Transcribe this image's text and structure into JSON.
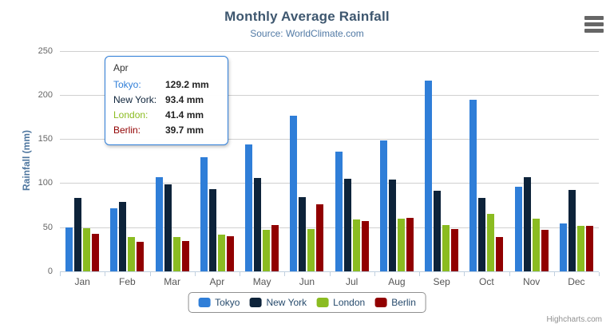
{
  "header": {
    "title": "Monthly Average Rainfall",
    "subtitle": "Source: WorldClimate.com"
  },
  "chart_data": {
    "type": "bar",
    "title": "Monthly Average Rainfall",
    "subtitle": "Source: WorldClimate.com",
    "xlabel": "",
    "ylabel": "Rainfall (mm)",
    "ylim": [
      0,
      250
    ],
    "yticks": [
      0,
      50,
      100,
      150,
      200,
      250
    ],
    "grid": true,
    "legend_position": "bottom",
    "categories": [
      "Jan",
      "Feb",
      "Mar",
      "Apr",
      "May",
      "Jun",
      "Jul",
      "Aug",
      "Sep",
      "Oct",
      "Nov",
      "Dec"
    ],
    "series": [
      {
        "name": "Tokyo",
        "color": "#2F7ED8",
        "values": [
          49.9,
          71.5,
          106.4,
          129.2,
          144.0,
          176.0,
          135.6,
          148.5,
          216.4,
          194.1,
          95.6,
          54.4
        ]
      },
      {
        "name": "New York",
        "color": "#0D233A",
        "values": [
          83.6,
          78.8,
          98.5,
          93.4,
          106.0,
          84.5,
          105.0,
          104.3,
          91.2,
          83.5,
          106.6,
          92.3
        ]
      },
      {
        "name": "London",
        "color": "#8BBC21",
        "values": [
          48.9,
          38.8,
          39.3,
          41.4,
          47.0,
          48.3,
          59.0,
          59.6,
          52.4,
          65.2,
          59.3,
          51.2
        ]
      },
      {
        "name": "Berlin",
        "color": "#910000",
        "values": [
          42.4,
          33.2,
          34.5,
          39.7,
          52.6,
          75.5,
          57.4,
          60.4,
          47.6,
          39.1,
          46.8,
          51.1
        ]
      }
    ]
  },
  "tooltip": {
    "header": "Apr",
    "border_color": "#2F7ED8",
    "rows": [
      {
        "label": "Tokyo:",
        "value": "129.2 mm",
        "color": "#2F7ED8"
      },
      {
        "label": "New York:",
        "value": "93.4 mm",
        "color": "#0D233A"
      },
      {
        "label": "London:",
        "value": "41.4 mm",
        "color": "#8BBC21"
      },
      {
        "label": "Berlin:",
        "value": "39.7 mm",
        "color": "#910000"
      }
    ]
  },
  "credits": {
    "label": "Highcharts.com"
  }
}
